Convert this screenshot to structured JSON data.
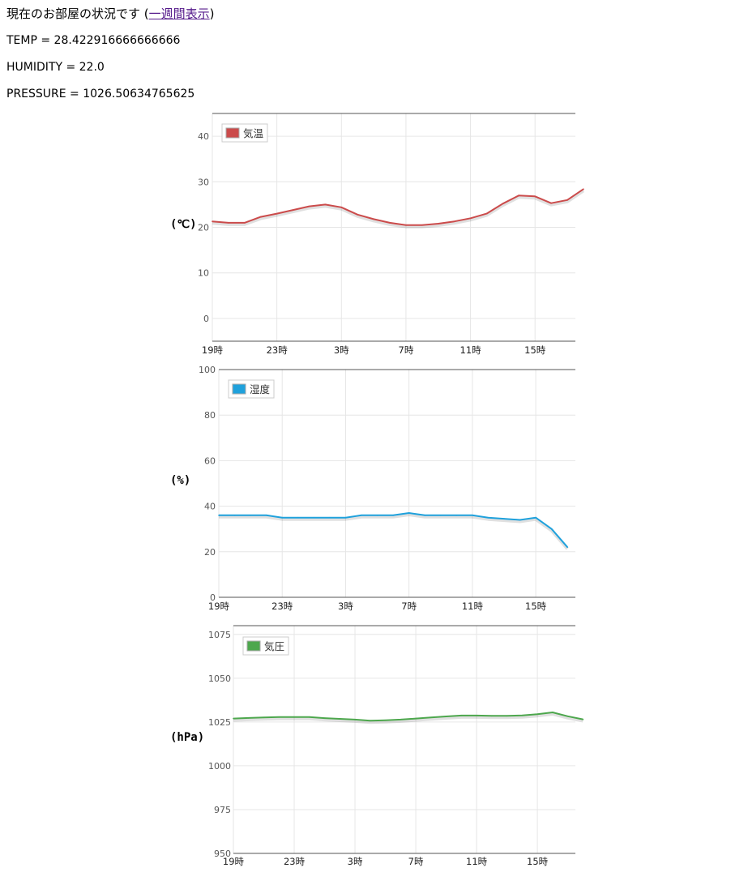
{
  "status": {
    "title_prefix": "現在のお部屋の状況です (",
    "link_label": "一週間表示",
    "title_suffix": ")",
    "temp_text": "TEMP = 28.422916666666666",
    "humidity_text": "HUMIDITY = 22.0",
    "pressure_text": "PRESSURE = 1026.50634765625"
  },
  "chart_data": [
    {
      "type": "line",
      "ylabel": "(℃)",
      "ylim": [
        -5,
        45
      ],
      "yticks": [
        0,
        10,
        20,
        30,
        40
      ],
      "x_tick_labels": [
        "19時",
        "23時",
        "3時",
        "7時",
        "11時",
        "15時"
      ],
      "x": [
        0,
        1,
        2,
        3,
        4,
        5,
        6,
        7,
        8,
        9,
        10,
        11,
        12,
        13,
        14,
        15,
        16,
        17,
        18,
        19,
        20,
        21,
        22,
        23
      ],
      "series": [
        {
          "name": "気温",
          "color": "#cb4b4b",
          "values": [
            21.3,
            21.0,
            21.0,
            22.3,
            23.0,
            23.8,
            24.6,
            25.0,
            24.4,
            22.8,
            21.8,
            21.0,
            20.5,
            20.5,
            20.8,
            21.3,
            22.0,
            23.0,
            25.2,
            27.0,
            26.8,
            25.3,
            26.0,
            28.4
          ]
        }
      ],
      "grid": true,
      "legend_position": "top-left"
    },
    {
      "type": "line",
      "ylabel": "(%)",
      "ylim": [
        0,
        100
      ],
      "yticks": [
        0,
        20,
        40,
        60,
        80,
        100
      ],
      "x_tick_labels": [
        "19時",
        "23時",
        "3時",
        "7時",
        "11時",
        "15時"
      ],
      "x": [
        0,
        1,
        2,
        3,
        4,
        5,
        6,
        7,
        8,
        9,
        10,
        11,
        12,
        13,
        14,
        15,
        16,
        17,
        18,
        19,
        20,
        21,
        22
      ],
      "series": [
        {
          "name": "湿度",
          "color": "#1fa1dc",
          "values": [
            36,
            36,
            36,
            36,
            35,
            35,
            35,
            35,
            35,
            36,
            36,
            36,
            37,
            36,
            36,
            36,
            36,
            35,
            34.5,
            34,
            35,
            30,
            22
          ]
        }
      ],
      "grid": true,
      "legend_position": "top-left"
    },
    {
      "type": "line",
      "ylabel": "(hPa)",
      "ylim": [
        950,
        1080
      ],
      "yticks": [
        950,
        975,
        1000,
        1025,
        1050,
        1075
      ],
      "x_tick_labels": [
        "19時",
        "23時",
        "3時",
        "7時",
        "11時",
        "15時"
      ],
      "x": [
        0,
        1,
        2,
        3,
        4,
        5,
        6,
        7,
        8,
        9,
        10,
        11,
        12,
        13,
        14,
        15,
        16,
        17,
        18,
        19,
        20,
        21,
        22,
        23
      ],
      "series": [
        {
          "name": "気圧",
          "color": "#4da74d",
          "values": [
            1027,
            1027.3,
            1027.6,
            1027.8,
            1027.8,
            1027.8,
            1027.2,
            1026.8,
            1026.4,
            1025.8,
            1026.0,
            1026.4,
            1027.0,
            1027.6,
            1028.2,
            1028.7,
            1028.7,
            1028.5,
            1028.5,
            1028.8,
            1029.5,
            1030.5,
            1028.3,
            1026.5
          ]
        }
      ],
      "grid": true,
      "legend_position": "top-left"
    }
  ]
}
